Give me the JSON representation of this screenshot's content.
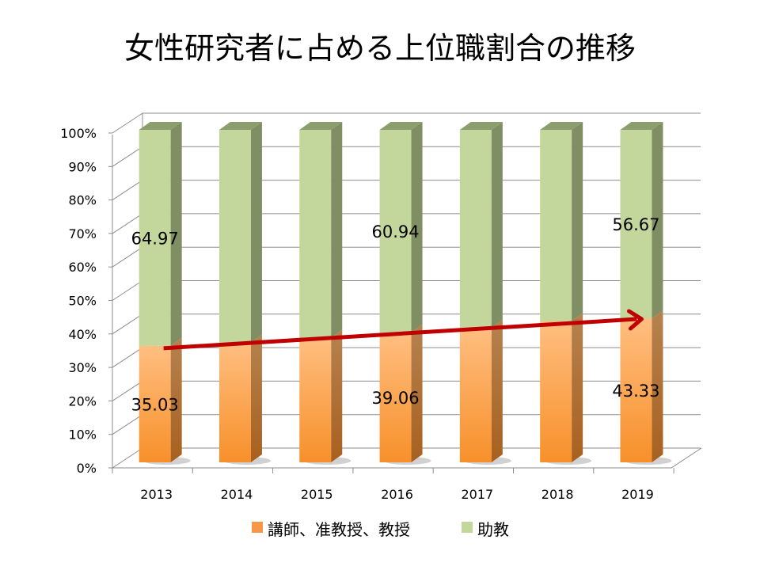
{
  "chart_data": {
    "type": "bar",
    "stacked": true,
    "percent": true,
    "title": "女性研究者に占める上位職割合の推移",
    "categories": [
      "2013",
      "2014",
      "2015",
      "2016",
      "2017",
      "2018",
      "2019"
    ],
    "series": [
      {
        "name": "講師、准教授、教授",
        "color": "#F79646",
        "values": [
          35.03,
          36.0,
          37.5,
          39.06,
          40.5,
          42.5,
          43.33
        ]
      },
      {
        "name": "助教",
        "color": "#C3D69B",
        "values": [
          64.97,
          64.0,
          62.5,
          60.94,
          59.5,
          57.5,
          56.67
        ]
      }
    ],
    "data_labels": [
      {
        "category": "2013",
        "series": 0,
        "text": "35.03"
      },
      {
        "category": "2013",
        "series": 1,
        "text": "64.97"
      },
      {
        "category": "2016",
        "series": 0,
        "text": "39.06"
      },
      {
        "category": "2016",
        "series": 1,
        "text": "60.94"
      },
      {
        "category": "2019",
        "series": 0,
        "text": "43.33"
      },
      {
        "category": "2019",
        "series": 1,
        "text": "56.67"
      }
    ],
    "y_ticks": [
      "0%",
      "10%",
      "20%",
      "30%",
      "40%",
      "50%",
      "60%",
      "70%",
      "80%",
      "90%",
      "100%"
    ],
    "ylim": [
      0,
      100
    ],
    "grid": true,
    "legend": "bottom",
    "annotation": "red trend arrow from 2013 to 2019 along the upper-position share",
    "arrow_color": "#C00000"
  }
}
